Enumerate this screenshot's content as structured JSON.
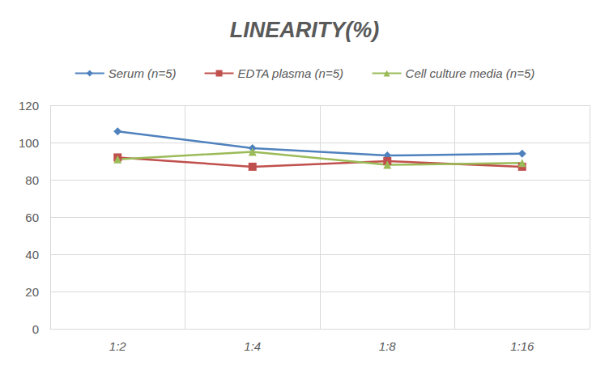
{
  "chart_data": {
    "type": "line",
    "title": "LINEARITY(%)",
    "categories": [
      "1:2",
      "1:4",
      "1:8",
      "1:16"
    ],
    "series": [
      {
        "name": "Serum (n=5)",
        "color": "#4f81bd",
        "marker": "diamond",
        "values": [
          106,
          97,
          93,
          94
        ]
      },
      {
        "name": "EDTA plasma (n=5)",
        "color": "#c0504d",
        "marker": "square",
        "values": [
          92,
          87,
          90,
          87
        ]
      },
      {
        "name": "Cell culture media (n=5)",
        "color": "#9bbb59",
        "marker": "triangle",
        "values": [
          91,
          95,
          88,
          89
        ]
      }
    ],
    "ylim": [
      0,
      120
    ],
    "yticks": [
      0,
      20,
      40,
      60,
      80,
      100,
      120
    ],
    "grid": true,
    "legend": "top"
  }
}
